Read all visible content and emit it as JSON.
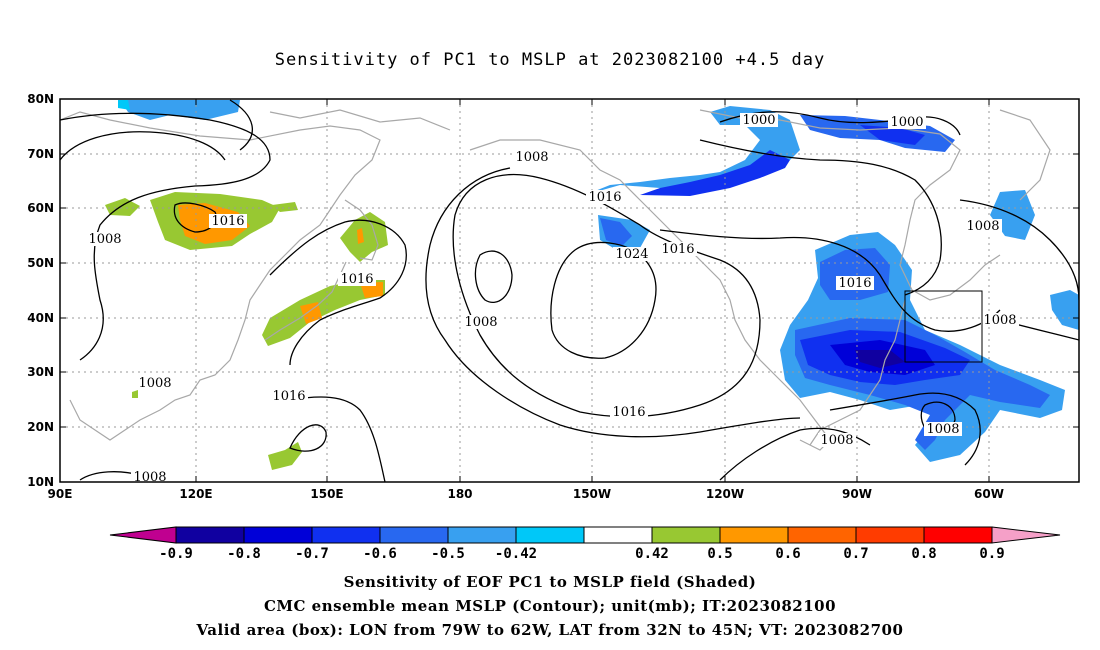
{
  "title": "Sensitivity of PC1 to MSLP at 2023082100 +4.5 day",
  "map": {
    "lat_labels": [
      "80N",
      "70N",
      "60N",
      "50N",
      "40N",
      "30N",
      "20N",
      "10N"
    ],
    "lon_labels": [
      "90E",
      "120E",
      "150E",
      "180",
      "150W",
      "120W",
      "90W",
      "60W"
    ],
    "contour_labels": [
      "1000",
      "1000",
      "1008",
      "1016",
      "1016",
      "1024",
      "1016",
      "1008",
      "1016",
      "1016",
      "1008",
      "1008",
      "1008",
      "1016",
      "1008",
      "1008",
      "1016",
      "1008",
      "1008",
      "1008",
      "1008"
    ],
    "box": {
      "lon_from": "79W",
      "lon_to": "62W",
      "lat_from": "32N",
      "lat_to": "45N"
    }
  },
  "colorbar": {
    "labels": [
      "-0.9",
      "-0.8",
      "-0.7",
      "-0.6",
      "-0.5",
      "-0.42",
      "0.42",
      "0.5",
      "0.6",
      "0.7",
      "0.8",
      "0.9"
    ],
    "colors": [
      "#c00090",
      "#1000a0",
      "#0000d8",
      "#1030f0",
      "#2868f0",
      "#38a0f0",
      "#00c8f8",
      "#ffffff",
      "#98c832",
      "#ff9800",
      "#ff6400",
      "#ff3c00",
      "#ff0000",
      "#f5a0c8"
    ]
  },
  "captions": {
    "line1": "Sensitivity of EOF PC1 to MSLP field (Shaded)",
    "line2": "CMC ensemble mean MSLP (Contour); unit(mb); IT:2023082100",
    "line3": "Valid area (box): LON from 79W to 62W, LAT from 32N to 45N; VT: 2023082700"
  }
}
